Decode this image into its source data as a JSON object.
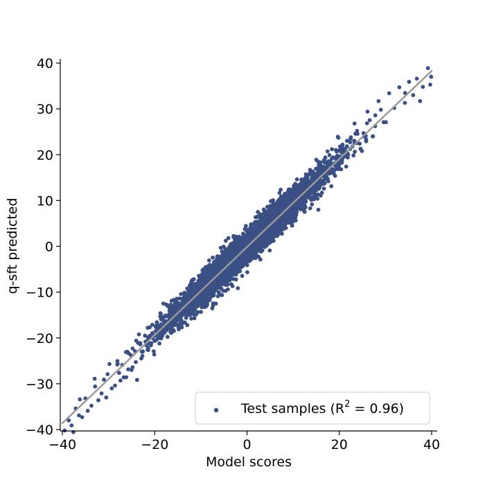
{
  "chart_data": {
    "type": "scatter",
    "title": "",
    "xlabel": "Model scores",
    "ylabel": "q-sft predicted",
    "xlim": [
      -40,
      40
    ],
    "ylim": [
      -40,
      40
    ],
    "xticks": [
      "−40",
      "−20",
      "0",
      "20",
      "40"
    ],
    "yticks": [
      "−40",
      "−30",
      "−20",
      "−10",
      "0",
      "10",
      "20",
      "30",
      "40"
    ],
    "grid": false,
    "legend_position": "bottom-right",
    "legend": {
      "prefix": "Test samples (R",
      "superscript": "2",
      "suffix": " = 0.96)"
    },
    "series": [
      {
        "name": "Test samples (R² = 0.96)",
        "color": "#3a5085",
        "points": [
          [
            -39.5,
            -40.2
          ],
          [
            -38.6,
            -38.0
          ],
          [
            -37.1,
            -35.4
          ],
          [
            -36.4,
            -36.9
          ],
          [
            -35.0,
            -33.2
          ],
          [
            -33.7,
            -34.8
          ],
          [
            -32.9,
            -30.6
          ],
          [
            -31.5,
            -32.1
          ],
          [
            -30.2,
            -27.9
          ],
          [
            -29.3,
            -31.0
          ],
          [
            -28.1,
            -25.8
          ],
          [
            -27.4,
            -29.3
          ],
          [
            -26.2,
            -23.1
          ],
          [
            -25.0,
            -27.0
          ],
          [
            -36.2,
            -33.4
          ],
          [
            -34.5,
            -35.9
          ],
          [
            -31.0,
            -29.1
          ],
          [
            -27.0,
            -25.9
          ],
          [
            -24.8,
            -26.4
          ],
          [
            -23.6,
            -21.1
          ],
          [
            -30.5,
            -33.0
          ],
          [
            -33.0,
            -28.9
          ],
          [
            -29.8,
            -25.7
          ],
          [
            -26.7,
            -28.6
          ],
          [
            -22.9,
            -24.5
          ],
          [
            -35.7,
            -37.3
          ],
          [
            -32.2,
            -33.6
          ],
          [
            -28.6,
            -30.4
          ],
          [
            -25.6,
            -23.4
          ],
          [
            -38.0,
            -39.1
          ],
          [
            -24.0,
            -20.6
          ],
          [
            -20.1,
            -23.6
          ],
          [
            -17.2,
            -13.0
          ],
          [
            -14.8,
            -18.1
          ],
          [
            12.6,
            8.7
          ],
          [
            15.0,
            18.9
          ],
          [
            17.6,
            14.2
          ],
          [
            19.8,
            23.7
          ],
          [
            21.5,
            17.4
          ],
          [
            23.3,
            26.8
          ],
          [
            24.9,
            20.8
          ],
          [
            26.1,
            29.4
          ],
          [
            27.3,
            24.0
          ],
          [
            28.5,
            31.7
          ],
          [
            29.6,
            27.1
          ],
          [
            30.8,
            33.4
          ],
          [
            31.9,
            30.2
          ],
          [
            33.0,
            34.7
          ],
          [
            34.2,
            31.3
          ],
          [
            35.1,
            35.9
          ],
          [
            36.0,
            33.0
          ],
          [
            36.8,
            36.6
          ],
          [
            37.5,
            31.7
          ],
          [
            38.1,
            34.8
          ],
          [
            39.2,
            38.9
          ],
          [
            39.9,
            37.0
          ],
          [
            39.7,
            35.3
          ],
          [
            25.8,
            23.3
          ],
          [
            27.8,
            28.6
          ],
          [
            29.0,
            29.8
          ],
          [
            22.5,
            23.8
          ],
          [
            24.4,
            22.4
          ],
          [
            19.2,
            16.8
          ],
          [
            18.4,
            21.2
          ],
          [
            16.2,
            15.8
          ],
          [
            14.1,
            16.3
          ],
          [
            13.4,
            12.3
          ],
          [
            11.8,
            14.6
          ],
          [
            -13.2,
            -15.6
          ],
          [
            -15.6,
            -14.0
          ],
          [
            -18.6,
            -20.1
          ],
          [
            -19.8,
            -17.4
          ],
          [
            -21.4,
            -22.2
          ],
          [
            -22.1,
            -19.5
          ],
          [
            -16.4,
            -18.9
          ],
          [
            -12.1,
            -10.6
          ],
          [
            -9.6,
            -12.4
          ],
          [
            10.5,
            9.6
          ],
          [
            8.9,
            11.7
          ],
          [
            -3.5,
            -5.2
          ]
        ]
      }
    ],
    "fit_line": {
      "color": "#999999",
      "x": [
        -40,
        40
      ],
      "y": [
        -38.6,
        38.3
      ]
    }
  }
}
